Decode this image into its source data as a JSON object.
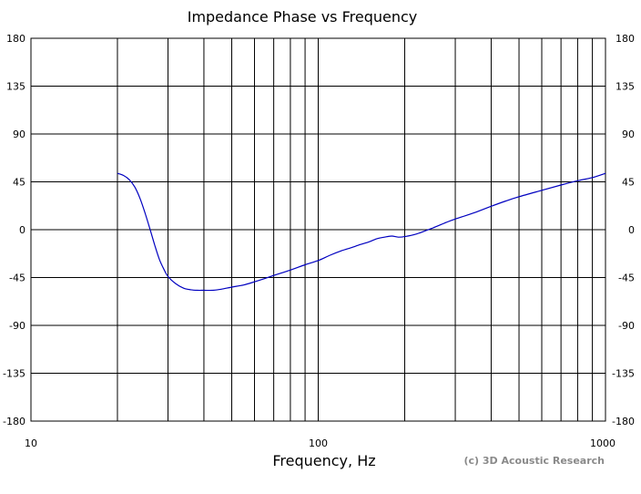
{
  "chart_data": {
    "type": "line",
    "title": "Impedance Phase vs Frequency",
    "xlabel": "Frequency, Hz",
    "ylabel": "",
    "xscale": "log",
    "xlim": [
      10,
      1000
    ],
    "ylim": [
      -180,
      180
    ],
    "x_tick_labels": [
      "10",
      "100",
      "1000"
    ],
    "y_tick_labels": [
      "180",
      "135",
      "90",
      "45",
      "0",
      "-45",
      "-90",
      "-135",
      "-180"
    ],
    "grid": true,
    "credit": "(c) 3D Acoustic Research",
    "colors": {
      "series": "#0000c0",
      "grid": "#000000",
      "background": "#ffffff"
    },
    "series": [
      {
        "x": [
          20,
          21,
          22,
          23,
          24,
          25,
          26,
          27,
          28,
          29,
          30,
          32,
          34,
          36,
          38,
          40,
          43,
          46,
          50,
          55,
          60,
          65,
          70,
          80,
          90,
          100,
          110,
          120,
          130,
          140,
          150,
          160,
          170,
          180,
          190,
          200,
          220,
          250,
          280,
          300,
          350,
          400,
          450,
          500,
          600,
          700,
          800,
          900,
          1000
        ],
        "y": [
          53,
          51,
          47,
          40,
          29,
          15,
          0,
          -15,
          -28,
          -37,
          -44,
          -51,
          -55,
          -56.5,
          -57,
          -57,
          -57,
          -56,
          -54,
          -52,
          -49,
          -46,
          -43,
          -38,
          -33,
          -29,
          -24,
          -20,
          -17,
          -14,
          -11.5,
          -8.5,
          -7,
          -6,
          -7,
          -6.5,
          -4,
          1.5,
          7,
          10,
          16,
          22,
          27,
          31,
          37,
          42,
          46,
          49,
          53
        ]
      }
    ]
  }
}
